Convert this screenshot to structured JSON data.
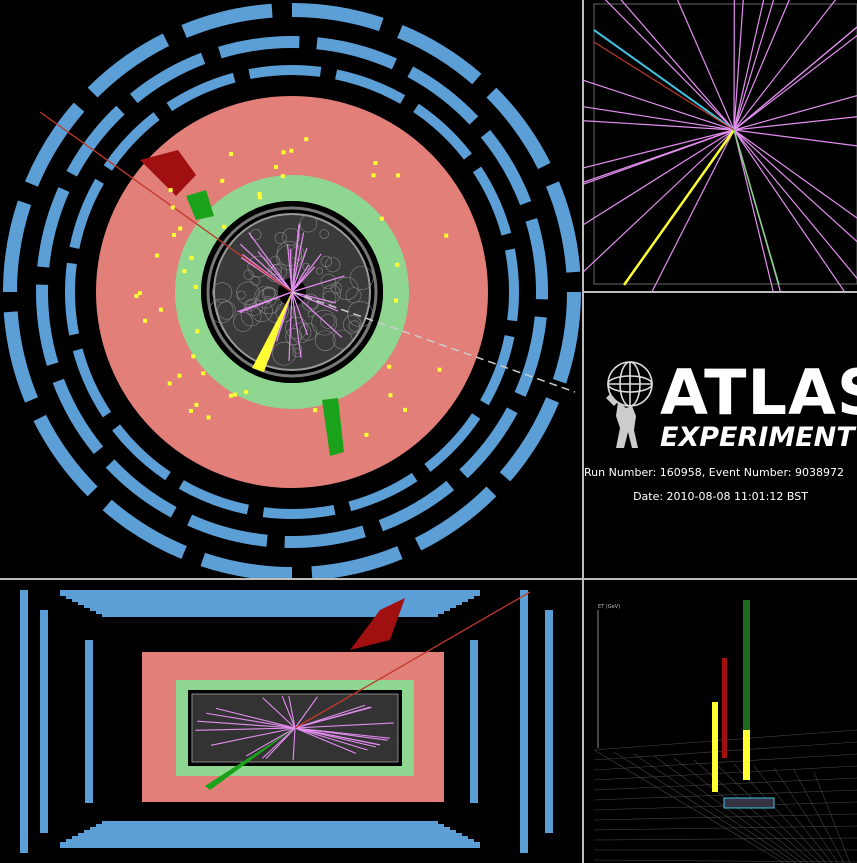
{
  "logo": {
    "title": "ATLAS",
    "subtitle": "EXPERIMENT",
    "icon": "atlas-globe-figure-icon"
  },
  "event": {
    "run_info": "Run Number: 160958, Event Number: 9038972",
    "date_info": "Date: 2010-08-08 11:01:12 BST"
  },
  "lego_plot": {
    "axis_label": "ET (GeV)"
  },
  "colors": {
    "background": "#000000",
    "muon_chambers": "#5b9fd6",
    "hadronic_calorimeter": "#e27f79",
    "em_calorimeter": "#8fd690",
    "tracks": "#e48ff0",
    "energy_deposits": "#ffff33",
    "hadronic_deposits": "#a01010",
    "divider": "#bdbdbd"
  }
}
